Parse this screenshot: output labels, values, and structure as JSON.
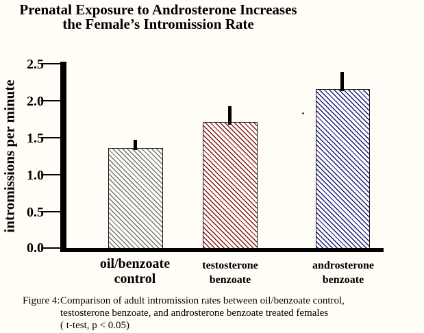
{
  "title": {
    "line1": "Prenatal Exposure to Androsterone Increases",
    "line2": "the Female’s Intromission Rate"
  },
  "y_axis": {
    "label": "intromissions per minute",
    "ticks": [
      "2.5",
      "2.0",
      "1.5",
      "1.0",
      "0.5",
      "0.0"
    ]
  },
  "chart_data": {
    "type": "bar",
    "title": "Prenatal Exposure to Androsterone Increases the Female’s Intromission Rate",
    "categories": [
      "oil/benzoate control",
      "testosterone benzoate",
      "androsterone benzoate"
    ],
    "values": [
      1.35,
      1.7,
      2.15
    ],
    "error_plus": [
      0.11,
      0.22,
      0.23
    ],
    "xlabel": "",
    "ylabel": "intromissions per minute",
    "ylim": [
      0,
      2.5
    ],
    "ytick_step": 0.5,
    "grid": false,
    "legend": false,
    "bar_styles": [
      {
        "hatch": "backslash-diagonal",
        "color": "#717171"
      },
      {
        "hatch": "backslash-diagonal",
        "color": "#7f1114"
      },
      {
        "hatch": "backslash-diagonal",
        "color": "#16167c"
      }
    ]
  },
  "category_labels": [
    {
      "line1": "oil/benzoate",
      "line2": "control"
    },
    {
      "line1": "testosterone",
      "line2": "benzoate"
    },
    {
      "line1": "androsterone",
      "line2": "benzoate"
    }
  ],
  "caption": {
    "prefix": "Figure 4:",
    "line1": "Comparison of adult intromission rates between oil/benzoate control,",
    "line2": "testosterone benzoate, and androsterone benzoate treated females",
    "line3": "( t-test, p < 0.05)"
  },
  "colors": {
    "background": "#fffdf6",
    "axis": "#000000",
    "error_bar": "#000000"
  }
}
